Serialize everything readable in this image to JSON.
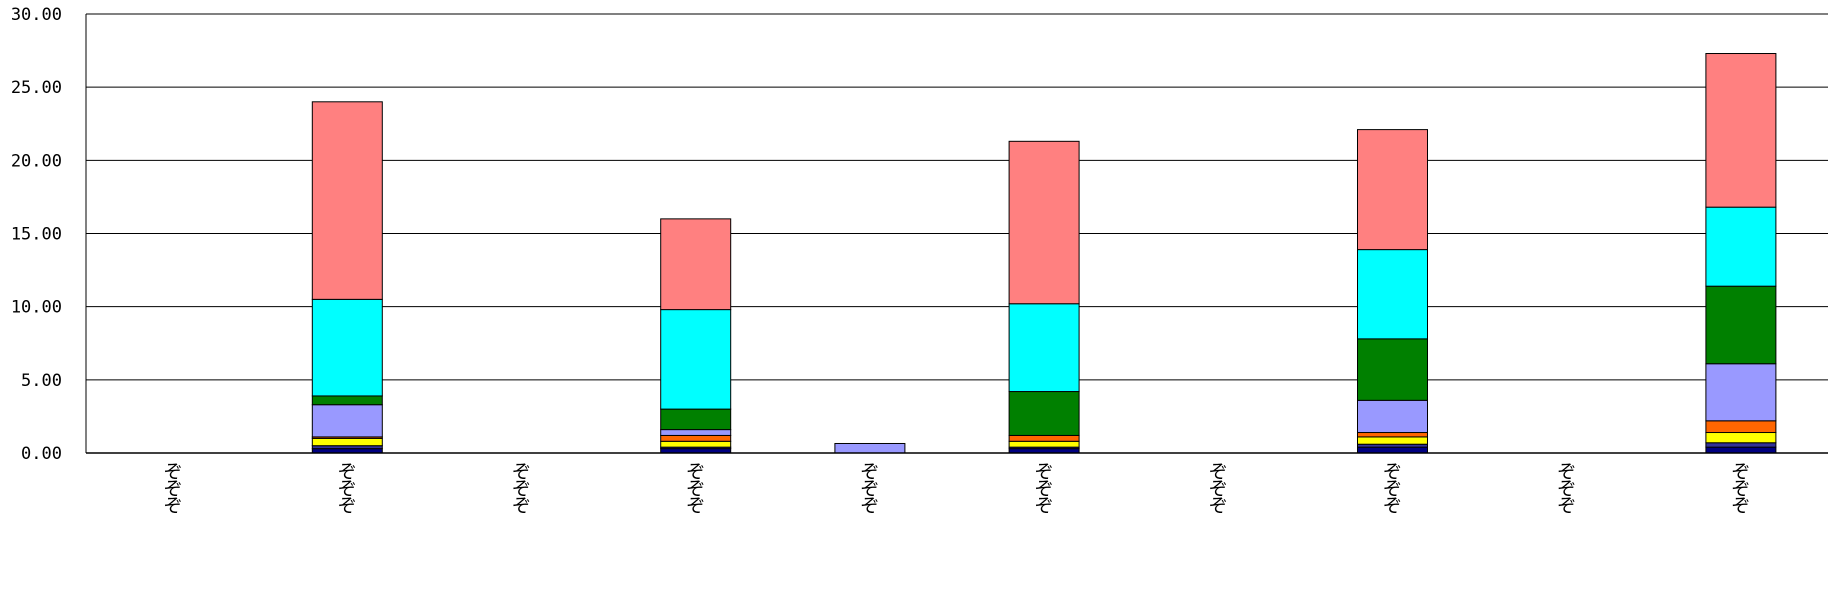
{
  "chart_data": {
    "type": "bar",
    "stacked": true,
    "ylim": [
      0,
      30
    ],
    "y_ticks": [
      "0.00",
      "5.00",
      "10.00",
      "15.00",
      "20.00",
      "25.00",
      "30.00"
    ],
    "y_tick_values": [
      0,
      5,
      10,
      15,
      20,
      25,
      30
    ],
    "grid": true,
    "legend": "none",
    "categories": [
      "ぞぞぞ",
      "ぞぞぞ",
      "ぞぞぞ",
      "ぞぞぞ",
      "ぞぞぞ",
      "ぞぞぞ",
      "ぞぞぞ",
      "ぞぞぞ",
      "ぞぞぞ",
      "ぞぞぞ"
    ],
    "series": [
      {
        "color": "#000080",
        "values": [
          0,
          0.3,
          0,
          0.3,
          0,
          0.3,
          0,
          0.4,
          0,
          0.4
        ]
      },
      {
        "color": "#333399",
        "values": [
          0,
          0.2,
          0,
          0.1,
          0,
          0.1,
          0,
          0.2,
          0,
          0.3
        ]
      },
      {
        "color": "#FFFF00",
        "values": [
          0,
          0.5,
          0,
          0.4,
          0,
          0.4,
          0,
          0.5,
          0,
          0.7
        ]
      },
      {
        "color": "#FF6600",
        "values": [
          0,
          0.1,
          0,
          0.4,
          0,
          0.4,
          0,
          0.3,
          0,
          0.8
        ]
      },
      {
        "color": "#9999FF",
        "values": [
          0,
          2.2,
          0,
          0.4,
          0.65,
          0,
          0,
          2.2,
          0,
          3.9
        ]
      },
      {
        "color": "#008000",
        "values": [
          0,
          0.6,
          0,
          1.4,
          0,
          3.0,
          0,
          4.2,
          0,
          5.3
        ]
      },
      {
        "color": "#00FFFF",
        "values": [
          0,
          6.6,
          0,
          6.8,
          0,
          6.0,
          0,
          6.1,
          0,
          5.4
        ]
      },
      {
        "color": "#FF8080",
        "values": [
          0,
          13.5,
          0,
          6.2,
          0,
          11.1,
          0,
          8.2,
          0,
          10.5
        ]
      }
    ]
  }
}
